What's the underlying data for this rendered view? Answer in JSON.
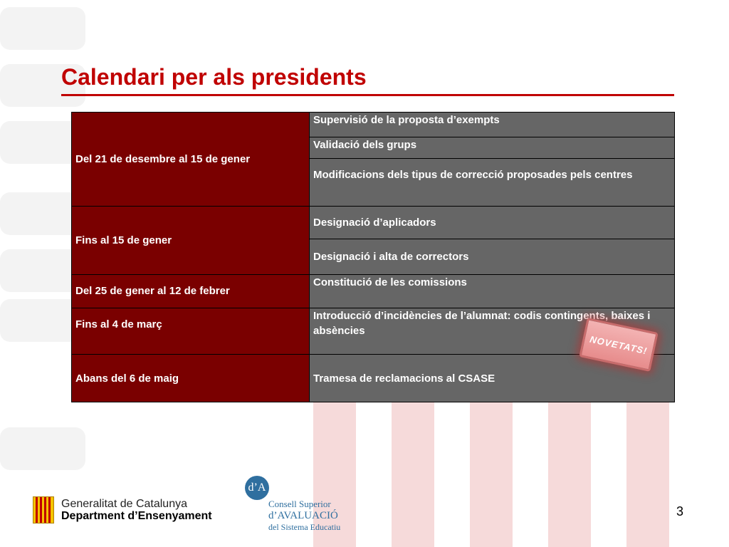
{
  "slide": {
    "title": "Calendari per als presidents",
    "page_number": "3"
  },
  "schedule": [
    {
      "period": "Del 21 de desembre al 15 de gener",
      "tasks": [
        "Supervisió de la proposta d’exempts",
        "Validació dels grups",
        "Modificacions dels tipus de correcció proposades pels centres"
      ]
    },
    {
      "period": "Fins al 15  de gener",
      "tasks": [
        "Designació d’aplicadors",
        "Designació i alta de correctors"
      ]
    },
    {
      "period": "Del 25 de gener al 12 de febrer",
      "tasks": [
        "Constitució de les comissions"
      ]
    },
    {
      "period": "Fins al 4 de març",
      "tasks": [
        "Introducció d’incidències de l’alumnat: codis contingents, baixes i absències"
      ]
    },
    {
      "period": "Abans del  6 de maig",
      "tasks": [
        "Tramesa de reclamacions al CSASE"
      ]
    }
  ],
  "badge": {
    "text": "NOVETATS!"
  },
  "logos": {
    "generalitat_line1": "Generalitat de Catalunya",
    "generalitat_line2": "Department d’Ensenyament",
    "consell_mark": "d’A",
    "consell_line1": "Consell  Superior",
    "consell_line2": "d’AVALUACIÓ",
    "consell_line3": "del Sistema Educatiu"
  },
  "colors": {
    "title_red": "#c00000",
    "period_bg": "#7a0000",
    "task_bg": "#666666",
    "badge_bg": "#e99a9a"
  }
}
